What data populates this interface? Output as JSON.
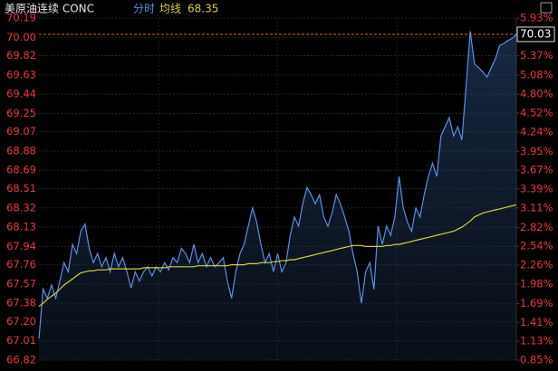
{
  "chart_data": {
    "type": "line",
    "title": "美原油连续 CONC",
    "ylim": [
      66.82,
      70.19
    ],
    "yticks": [
      70.19,
      {
        "value": 70,
        "label": "70.00"
      },
      69.82,
      69.63,
      69.44,
      69.25,
      69.07,
      68.88,
      68.69,
      68.51,
      68.32,
      68.13,
      67.94,
      67.76,
      67.57,
      67.38,
      {
        "value": 67.2,
        "label": "67.20"
      },
      67.01,
      66.82
    ],
    "y2lim": [
      0.85,
      5.93
    ],
    "y2ticks": [
      {
        "value": 5.93,
        "label": "5.93%"
      },
      {
        "value": 5.65,
        "label": "5.65%"
      },
      {
        "value": 5.37,
        "label": "5.37%"
      },
      {
        "value": 5.08,
        "label": "5.08%"
      },
      {
        "value": 4.8,
        "label": "4.80%"
      },
      {
        "value": 4.52,
        "label": "4.52%"
      },
      {
        "value": 4.24,
        "label": "4.24%"
      },
      {
        "value": 3.95,
        "label": "3.95%"
      },
      {
        "value": 3.67,
        "label": "3.67%"
      },
      {
        "value": 3.39,
        "label": "3.39%"
      },
      {
        "value": 3.11,
        "label": "3.11%"
      },
      {
        "value": 2.82,
        "label": "2.82%"
      },
      {
        "value": 2.54,
        "label": "2.54%"
      },
      {
        "value": 2.26,
        "label": "2.26%"
      },
      {
        "value": 1.98,
        "label": "1.98%"
      },
      {
        "value": 1.69,
        "label": "1.69%"
      },
      {
        "value": 1.41,
        "label": "1.41%"
      },
      {
        "value": 1.13,
        "label": "1.13%"
      },
      {
        "value": 0.85,
        "label": "0.85%"
      }
    ],
    "grid": true,
    "series": [
      {
        "name": "分时",
        "color": "#5b8fe8",
        "values": [
          67.03,
          67.52,
          67.43,
          67.56,
          67.43,
          67.6,
          67.78,
          67.69,
          67.96,
          67.87,
          68.09,
          68.16,
          67.92,
          67.78,
          67.87,
          67.74,
          67.83,
          67.69,
          67.87,
          67.74,
          67.83,
          67.69,
          67.53,
          67.69,
          67.6,
          67.69,
          67.74,
          67.65,
          67.74,
          67.69,
          67.78,
          67.71,
          67.83,
          67.78,
          67.92,
          67.87,
          67.78,
          67.96,
          67.78,
          67.87,
          67.74,
          67.83,
          67.74,
          67.78,
          67.83,
          67.6,
          67.43,
          67.69,
          67.87,
          67.96,
          68.14,
          68.32,
          68.18,
          67.96,
          67.78,
          67.87,
          67.69,
          67.87,
          67.69,
          67.78,
          68.05,
          68.23,
          68.14,
          68.36,
          68.52,
          68.45,
          68.36,
          68.45,
          68.23,
          68.14,
          68.27,
          68.45,
          68.36,
          68.23,
          68.09,
          67.87,
          67.69,
          67.38,
          67.69,
          67.78,
          67.52,
          68.14,
          67.96,
          68.14,
          68.05,
          68.23,
          68.63,
          68.32,
          68.18,
          68.09,
          68.32,
          68.23,
          68.45,
          68.63,
          68.76,
          68.63,
          69.03,
          69.12,
          69.21,
          69.03,
          69.12,
          68.99,
          69.52,
          70.06,
          69.74,
          69.7,
          69.66,
          69.61,
          69.7,
          69.79,
          69.92,
          69.94,
          69.97,
          69.99,
          70.03
        ]
      },
      {
        "name": "均线",
        "color": "#d8d040",
        "values": [
          67.35,
          67.38,
          67.42,
          67.45,
          67.48,
          67.52,
          67.56,
          67.59,
          67.62,
          67.65,
          67.68,
          67.69,
          67.7,
          67.7,
          67.71,
          67.71,
          67.71,
          67.72,
          67.72,
          67.72,
          67.72,
          67.72,
          67.72,
          67.72,
          67.72,
          67.73,
          67.73,
          67.73,
          67.73,
          67.73,
          67.73,
          67.74,
          67.74,
          67.74,
          67.74,
          67.74,
          67.74,
          67.74,
          67.75,
          67.75,
          67.75,
          67.75,
          67.75,
          67.75,
          67.75,
          67.75,
          67.76,
          67.76,
          67.76,
          67.76,
          67.77,
          67.77,
          67.77,
          67.78,
          67.78,
          67.78,
          67.79,
          67.79,
          67.8,
          67.8,
          67.81,
          67.81,
          67.82,
          67.83,
          67.84,
          67.85,
          67.86,
          67.87,
          67.88,
          67.89,
          67.9,
          67.91,
          67.92,
          67.93,
          67.94,
          67.95,
          67.95,
          67.95,
          67.94,
          67.94,
          67.94,
          67.94,
          67.94,
          67.95,
          67.95,
          67.96,
          67.96,
          67.97,
          67.98,
          67.99,
          68.0,
          68.01,
          68.02,
          68.03,
          68.04,
          68.05,
          68.06,
          68.07,
          68.08,
          68.09,
          68.11,
          68.13,
          68.16,
          68.19,
          68.23,
          68.25,
          68.27,
          68.28,
          68.29,
          68.3,
          68.31,
          68.32,
          68.33,
          68.34,
          68.35
        ]
      }
    ]
  }
}
